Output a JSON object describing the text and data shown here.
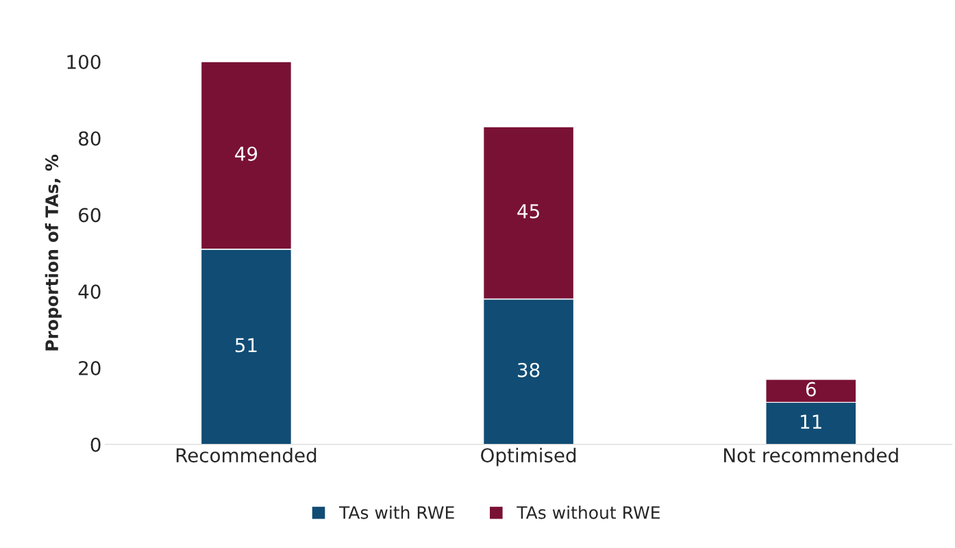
{
  "chart_data": {
    "type": "bar",
    "stacked": true,
    "ylabel": "Proportion of TAs, %",
    "categories": [
      "Recommended",
      "Optimised",
      "Not recommended"
    ],
    "series": [
      {
        "name": "TAs with RWE",
        "color": "#114c74",
        "values": [
          51,
          38,
          11
        ]
      },
      {
        "name": "TAs without RWE",
        "color": "#791135",
        "values": [
          49,
          45,
          6
        ]
      }
    ],
    "ylim": [
      0,
      100
    ],
    "yticks": [
      0,
      20,
      40,
      60,
      80,
      100
    ],
    "grid": false,
    "legend": "bottom",
    "data_labels": true
  }
}
